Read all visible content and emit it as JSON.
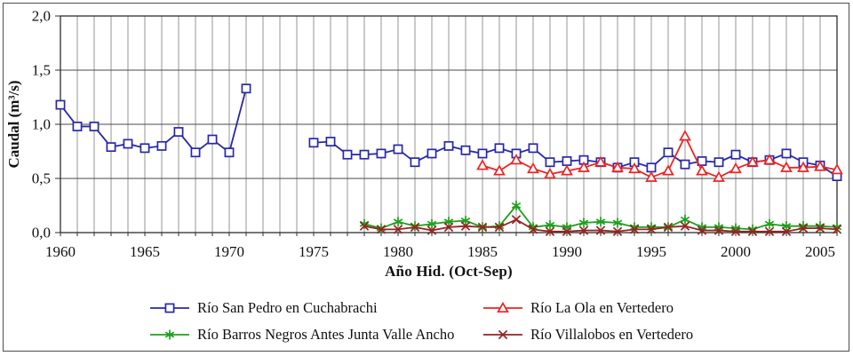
{
  "chart_data": {
    "type": "line",
    "title": "",
    "xlabel": "Año Hid. (Oct-Sep)",
    "ylabel": "Caudal (m³/s)",
    "xlim": [
      1960,
      2006
    ],
    "ylim": [
      0,
      2
    ],
    "grid": true,
    "x_gridline_every_years": 1,
    "xticks": [
      1960,
      1965,
      1970,
      1975,
      1980,
      1985,
      1990,
      1995,
      2000,
      2005
    ],
    "yticks": [
      0,
      0.5,
      1,
      1.5,
      2
    ],
    "ytick_labels": [
      "0,0",
      "0,5",
      "1,0",
      "1,5",
      "2,0"
    ],
    "legend_position": "bottom",
    "frame_color": "#4d4d4d",
    "gridline_color_vertical": "#8a8a8a",
    "gridline_color_horizontal": "#4a4a4a",
    "series": [
      {
        "name": "Río San Pedro en Cuchabrachi",
        "color": "#2828a8",
        "marker": "square",
        "x": [
          1960,
          1961,
          1962,
          1963,
          1964,
          1965,
          1966,
          1967,
          1968,
          1969,
          1970,
          1971,
          1975,
          1976,
          1977,
          1978,
          1979,
          1980,
          1981,
          1982,
          1983,
          1984,
          1985,
          1986,
          1987,
          1988,
          1989,
          1990,
          1991,
          1992,
          1993,
          1994,
          1995,
          1996,
          1997,
          1998,
          1999,
          2000,
          2001,
          2002,
          2003,
          2004,
          2005,
          2006
        ],
        "y": [
          1.18,
          0.98,
          0.98,
          0.79,
          0.82,
          0.78,
          0.8,
          0.93,
          0.74,
          0.86,
          0.74,
          1.33,
          0.83,
          0.84,
          0.72,
          0.72,
          0.73,
          0.77,
          0.65,
          0.73,
          0.8,
          0.76,
          0.73,
          0.78,
          0.73,
          0.78,
          0.65,
          0.66,
          0.67,
          0.65,
          0.6,
          0.65,
          0.6,
          0.74,
          0.63,
          0.66,
          0.65,
          0.72,
          0.65,
          0.67,
          0.73,
          0.65,
          0.62,
          0.52
        ]
      },
      {
        "name": "Río La Ola en Vertedero",
        "color": "#ee2222",
        "marker": "triangle",
        "x": [
          1985,
          1986,
          1987,
          1988,
          1989,
          1990,
          1991,
          1992,
          1993,
          1994,
          1995,
          1996,
          1997,
          1998,
          1999,
          2000,
          2001,
          2002,
          2003,
          2004,
          2005,
          2006
        ],
        "y": [
          0.62,
          0.57,
          0.67,
          0.59,
          0.54,
          0.57,
          0.6,
          0.65,
          0.6,
          0.59,
          0.51,
          0.57,
          0.89,
          0.57,
          0.51,
          0.59,
          0.65,
          0.67,
          0.6,
          0.6,
          0.61,
          0.58
        ]
      },
      {
        "name": "Río Barros Negros Antes Junta Valle Ancho",
        "color": "#1da11d",
        "marker": "asterisk",
        "x": [
          1978,
          1979,
          1980,
          1981,
          1982,
          1983,
          1984,
          1985,
          1986,
          1987,
          1988,
          1989,
          1990,
          1991,
          1992,
          1993,
          1994,
          1995,
          1996,
          1997,
          1998,
          1999,
          2000,
          2001,
          2002,
          2003,
          2004,
          2005,
          2006
        ],
        "y": [
          0.08,
          0.04,
          0.1,
          0.06,
          0.08,
          0.1,
          0.11,
          0.05,
          0.06,
          0.25,
          0.05,
          0.07,
          0.05,
          0.09,
          0.1,
          0.09,
          0.05,
          0.05,
          0.05,
          0.12,
          0.05,
          0.05,
          0.04,
          0.03,
          0.08,
          0.06,
          0.06,
          0.06,
          0.05
        ]
      },
      {
        "name": "Río Villalobos en Vertedero",
        "color": "#962323",
        "marker": "x",
        "x": [
          1978,
          1979,
          1980,
          1981,
          1982,
          1983,
          1984,
          1985,
          1986,
          1987,
          1988,
          1989,
          1990,
          1991,
          1992,
          1993,
          1994,
          1995,
          1996,
          1997,
          1998,
          1999,
          2000,
          2001,
          2002,
          2003,
          2004,
          2005,
          2006
        ],
        "y": [
          0.06,
          0.03,
          0.03,
          0.05,
          0.02,
          0.05,
          0.06,
          0.05,
          0.05,
          0.12,
          0.03,
          0.01,
          0.01,
          0.02,
          0.02,
          0.01,
          0.03,
          0.03,
          0.05,
          0.06,
          0.02,
          0.02,
          0.01,
          0.01,
          0.01,
          0.01,
          0.04,
          0.04,
          0.03
        ]
      }
    ]
  }
}
